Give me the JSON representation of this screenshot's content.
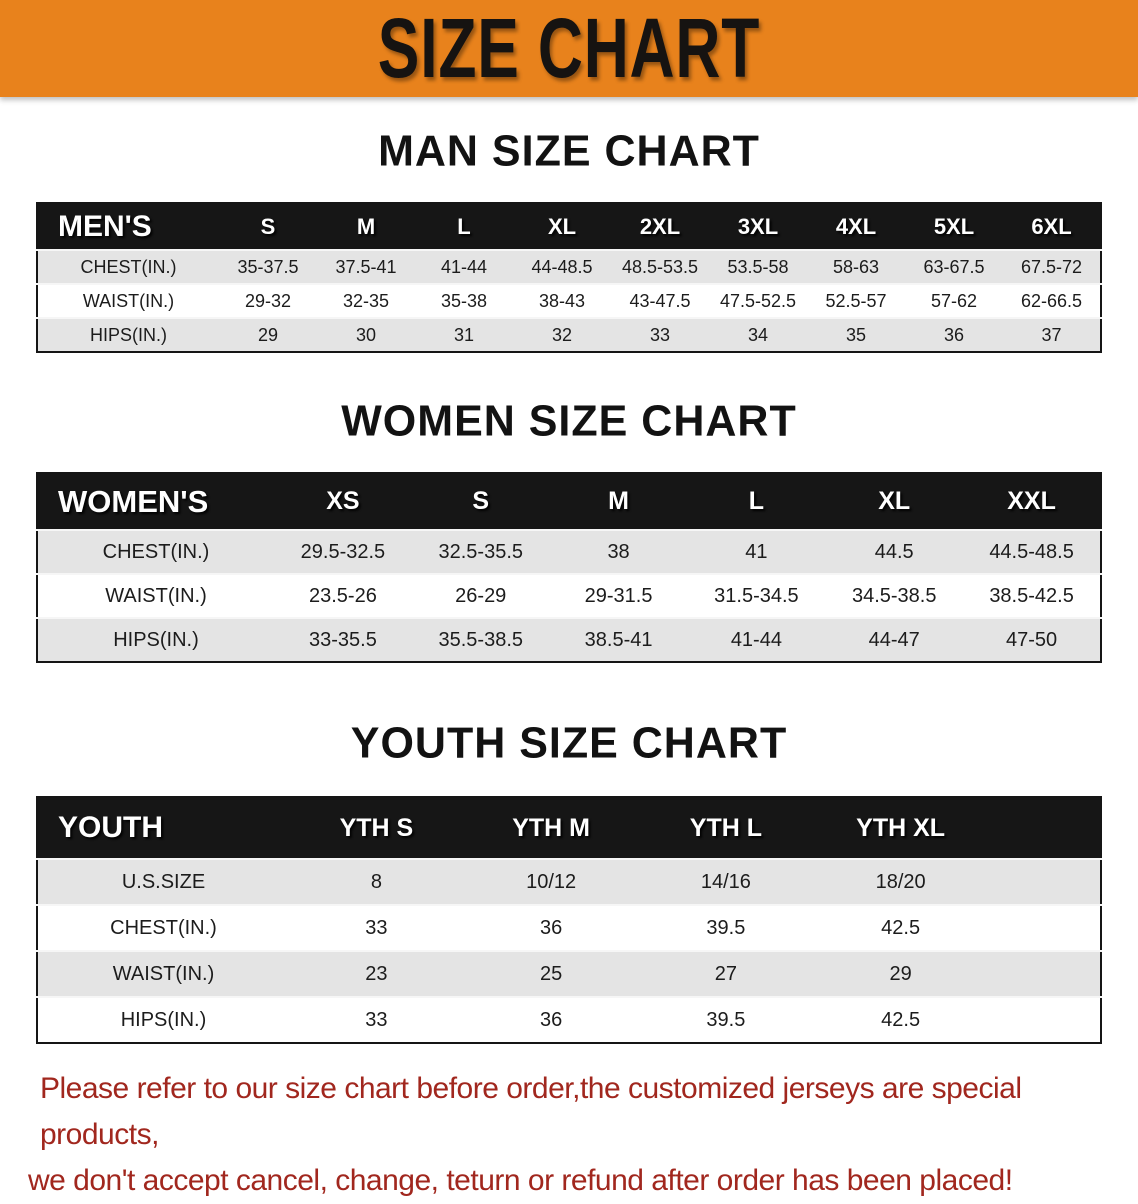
{
  "banner": {
    "title": "SIZE CHART"
  },
  "colors": {
    "banner_orange": "#e8821c",
    "table_header_black": "#161616",
    "row_stripe_gray": "#e4e4e4",
    "row_stripe_white": "#ffffff",
    "note_red": "#a1271e"
  },
  "sections": {
    "men": {
      "heading": "MAN SIZE CHART",
      "table": {
        "label": "MEN'S",
        "columns": [
          "S",
          "M",
          "L",
          "XL",
          "2XL",
          "3XL",
          "4XL",
          "5XL",
          "6XL"
        ],
        "rows": [
          {
            "label": "CHEST(IN.)",
            "values": [
              "35-37.5",
              "37.5-41",
              "41-44",
              "44-48.5",
              "48.5-53.5",
              "53.5-58",
              "58-63",
              "63-67.5",
              "67.5-72"
            ]
          },
          {
            "label": "WAIST(IN.)",
            "values": [
              "29-32",
              "32-35",
              "35-38",
              "38-43",
              "43-47.5",
              "47.5-52.5",
              "52.5-57",
              "57-62",
              "62-66.5"
            ]
          },
          {
            "label": "HIPS(IN.)",
            "values": [
              "29",
              "30",
              "31",
              "32",
              "33",
              "34",
              "35",
              "36",
              "37"
            ]
          }
        ]
      }
    },
    "women": {
      "heading": "WOMEN SIZE CHART",
      "table": {
        "label": "WOMEN'S",
        "columns": [
          "XS",
          "S",
          "M",
          "L",
          "XL",
          "XXL"
        ],
        "rows": [
          {
            "label": "CHEST(IN.)",
            "values": [
              "29.5-32.5",
              "32.5-35.5",
              "38",
              "41",
              "44.5",
              "44.5-48.5"
            ]
          },
          {
            "label": "WAIST(IN.)",
            "values": [
              "23.5-26",
              "26-29",
              "29-31.5",
              "31.5-34.5",
              "34.5-38.5",
              "38.5-42.5"
            ]
          },
          {
            "label": "HIPS(IN.)",
            "values": [
              "33-35.5",
              "35.5-38.5",
              "38.5-41",
              "41-44",
              "44-47",
              "47-50"
            ]
          }
        ]
      }
    },
    "youth": {
      "heading": "YOUTH SIZE CHART",
      "table": {
        "label": "YOUTH",
        "columns": [
          "YTH S",
          "YTH M",
          "YTH L",
          "YTH XL"
        ],
        "rows": [
          {
            "label": "U.S.SIZE",
            "values": [
              "8",
              "10/12",
              "14/16",
              "18/20"
            ]
          },
          {
            "label": "CHEST(IN.)",
            "values": [
              "33",
              "36",
              "39.5",
              "42.5"
            ]
          },
          {
            "label": "WAIST(IN.)",
            "values": [
              "23",
              "25",
              "27",
              "29"
            ]
          },
          {
            "label": "HIPS(IN.)",
            "values": [
              "33",
              "36",
              "39.5",
              "42.5"
            ]
          }
        ]
      }
    }
  },
  "note": {
    "line1": "Please refer to our size chart before order,the customized jerseys are special products,",
    "line2": "we don't accept cancel, change, teturn or refund after order has been placed!"
  }
}
